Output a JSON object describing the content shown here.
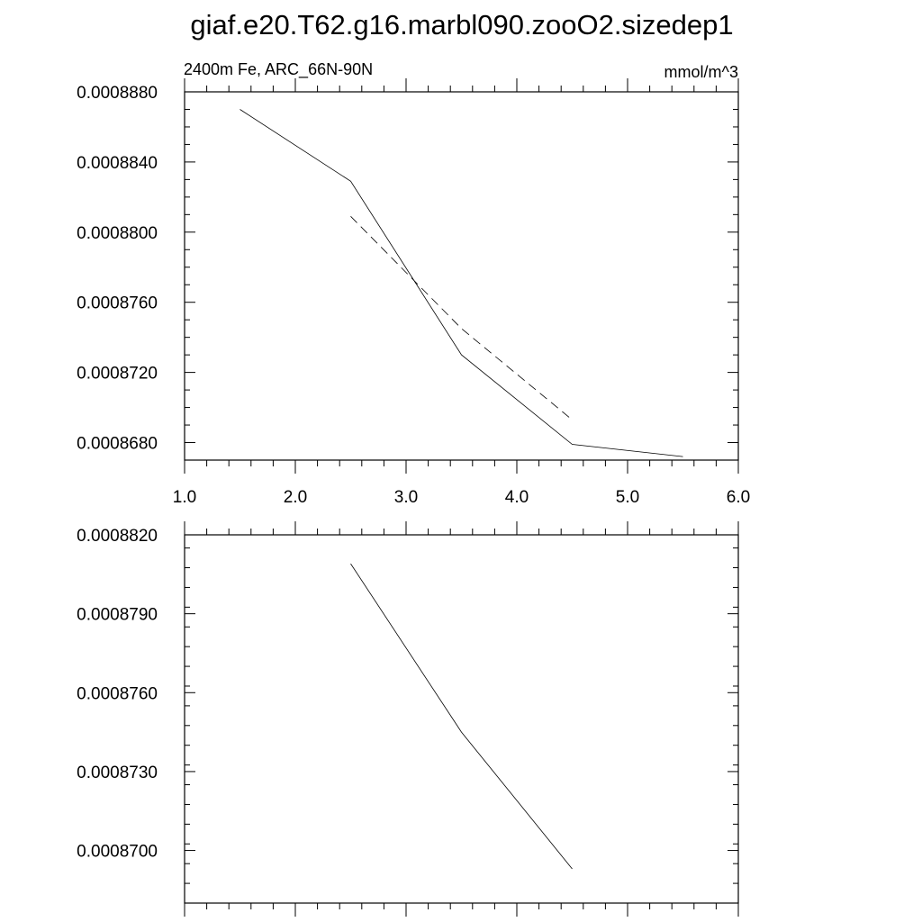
{
  "title": "giaf.e20.T62.g16.marbl090.zooO2.sizedep1",
  "chart_data": [
    {
      "type": "line",
      "subtitle_left": "2400m Fe, ARC_66N-90N",
      "subtitle_right": "mmol/m^3",
      "xlim": [
        1.0,
        6.0
      ],
      "ylim": [
        0.000867,
        0.000888
      ],
      "x_ticks": [
        "1.0",
        "2.0",
        "3.0",
        "4.0",
        "5.0",
        "6.0"
      ],
      "x_tick_values": [
        1.0,
        2.0,
        3.0,
        4.0,
        5.0,
        6.0
      ],
      "y_ticks": [
        "0.0008680",
        "0.0008720",
        "0.0008760",
        "0.0008800",
        "0.0008840",
        "0.0008880"
      ],
      "y_tick_values": [
        0.000868,
        0.000872,
        0.000876,
        0.00088,
        0.000884,
        0.000888
      ],
      "series": [
        {
          "style": "solid",
          "x": [
            1.5,
            2.5,
            3.5,
            4.5,
            5.5
          ],
          "values": [
            0.000887,
            0.0008829,
            0.000873,
            0.0008679,
            0.0008672
          ]
        },
        {
          "style": "dashed",
          "x": [
            2.5,
            3.5,
            4.5
          ],
          "values": [
            0.0008809,
            0.0008745,
            0.0008693
          ]
        }
      ],
      "grid": false
    },
    {
      "type": "line",
      "xlim": [
        1.0,
        6.0
      ],
      "ylim": [
        0.000868,
        0.000882
      ],
      "x_ticks": [],
      "x_tick_values": [
        1.0,
        2.0,
        3.0,
        4.0,
        5.0,
        6.0
      ],
      "y_ticks": [
        "0.0008700",
        "0.0008730",
        "0.0008760",
        "0.0008790",
        "0.0008820"
      ],
      "y_tick_values": [
        0.00087,
        0.000873,
        0.000876,
        0.000879,
        0.000882
      ],
      "series": [
        {
          "style": "solid",
          "x": [
            2.5,
            3.5,
            4.5
          ],
          "values": [
            0.0008809,
            0.0008745,
            0.0008693
          ]
        }
      ],
      "grid": false
    }
  ]
}
